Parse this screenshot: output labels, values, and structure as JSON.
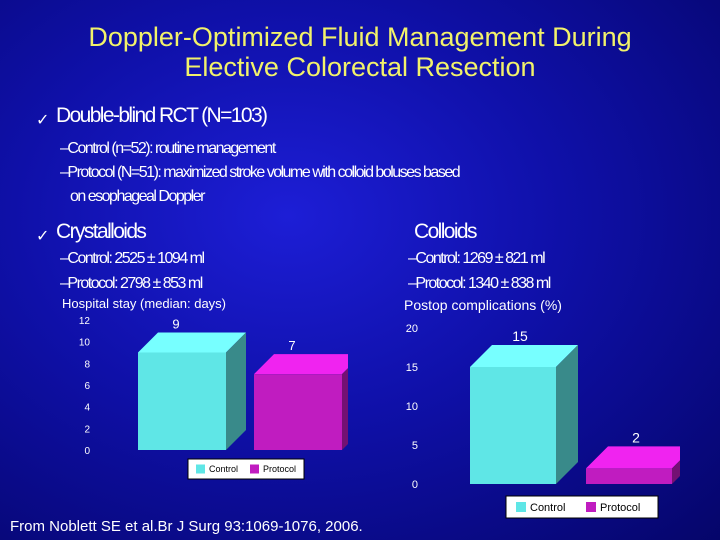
{
  "title_line1": "Doppler-Optimized Fluid Management During",
  "title_line2": "Elective Colorectal Resection",
  "bullets": [
    {
      "check": "✓",
      "text": "Double-blind RCT (N=103)",
      "subs": [
        "–Control (n=52): routine management",
        "–Protocol (N=51): maximized stroke volume with colloid boluses based",
        "on esophageal Doppler"
      ]
    },
    {
      "check": "✓",
      "text": "Crystalloids",
      "subs": [
        "–Control: 2525 ± 1094 ml",
        "–Protocol: 2798 ± 853 ml"
      ]
    },
    {
      "text": "Colloids",
      "subs": [
        "–Control: 1269 ± 821 ml",
        "–Protocol: 1340 ± 838 ml"
      ]
    }
  ],
  "citation": "From Noblett SE et al.Br J Surg 93:1069-1076, 2006.",
  "colors": {
    "background": "#0f10a8",
    "title": "#f2f26a",
    "control": "#5fe6e6",
    "protocol": "#c01cc0"
  },
  "chart_data": [
    {
      "type": "bar",
      "title": "Hospital stay (median: days)",
      "categories": [
        "Control",
        "Protocol"
      ],
      "values": [
        9,
        7
      ],
      "ylim": [
        0,
        12
      ],
      "yticks": [
        "0",
        "2",
        "4",
        "6",
        "8",
        "10",
        "12"
      ],
      "legend": [
        "Control",
        "Protocol"
      ],
      "legend_position": "bottom",
      "style": "3d"
    },
    {
      "type": "bar",
      "title": "Postop complications (%)",
      "categories": [
        "Control",
        "Protocol"
      ],
      "values": [
        15,
        2
      ],
      "ylim": [
        0,
        20
      ],
      "yticks": [
        "0",
        "5",
        "10",
        "15",
        "20"
      ],
      "legend": [
        "Control",
        "Protocol"
      ],
      "legend_position": "bottom",
      "style": "3d"
    }
  ]
}
